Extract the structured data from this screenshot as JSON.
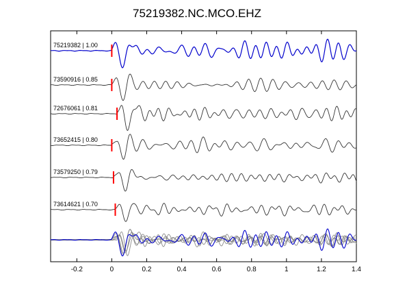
{
  "chart_data": {
    "type": "line",
    "title": "75219382.NC.MCO.EHZ",
    "xlabel": "",
    "ylabel": "",
    "xlim": [
      -0.35,
      1.4
    ],
    "x_ticks": [
      "-0.2",
      "0",
      "0.2",
      "0.4",
      "0.6",
      "0.8",
      "1",
      "1.2",
      "1.4"
    ],
    "x_tick_values": [
      -0.2,
      0,
      0.2,
      0.4,
      0.6,
      0.8,
      1.0,
      1.2,
      1.4
    ],
    "grid": false,
    "series": [
      {
        "name": "75219382 | 1.00",
        "label": "75219382 | 1.00",
        "color": "#0000cc",
        "pick_time": 0.0,
        "amplitude": 1.25,
        "seed": 1
      },
      {
        "name": "73590916 | 0.85",
        "label": "73590916 | 0.85",
        "color": "#333333",
        "pick_time": 0.0,
        "amplitude": 0.85,
        "seed": 2
      },
      {
        "name": "72676061 | 0.81",
        "label": "72676061 | 0.81",
        "color": "#333333",
        "pick_time": 0.03,
        "amplitude": 1.05,
        "seed": 3
      },
      {
        "name": "73652415 | 0.80",
        "label": "73652415 | 0.80",
        "color": "#333333",
        "pick_time": 0.0,
        "amplitude": 0.95,
        "seed": 4
      },
      {
        "name": "73579250 | 0.79",
        "label": "73579250 | 0.79",
        "color": "#333333",
        "pick_time": 0.01,
        "amplitude": 0.85,
        "seed": 5
      },
      {
        "name": "73614621 | 0.70",
        "label": "73614621 | 0.70",
        "color": "#333333",
        "pick_time": 0.02,
        "amplitude": 0.9,
        "seed": 6
      }
    ],
    "stack": {
      "colors": [
        "#0000cc",
        "#808080"
      ]
    },
    "pick_marker_color": "#ff0000"
  }
}
